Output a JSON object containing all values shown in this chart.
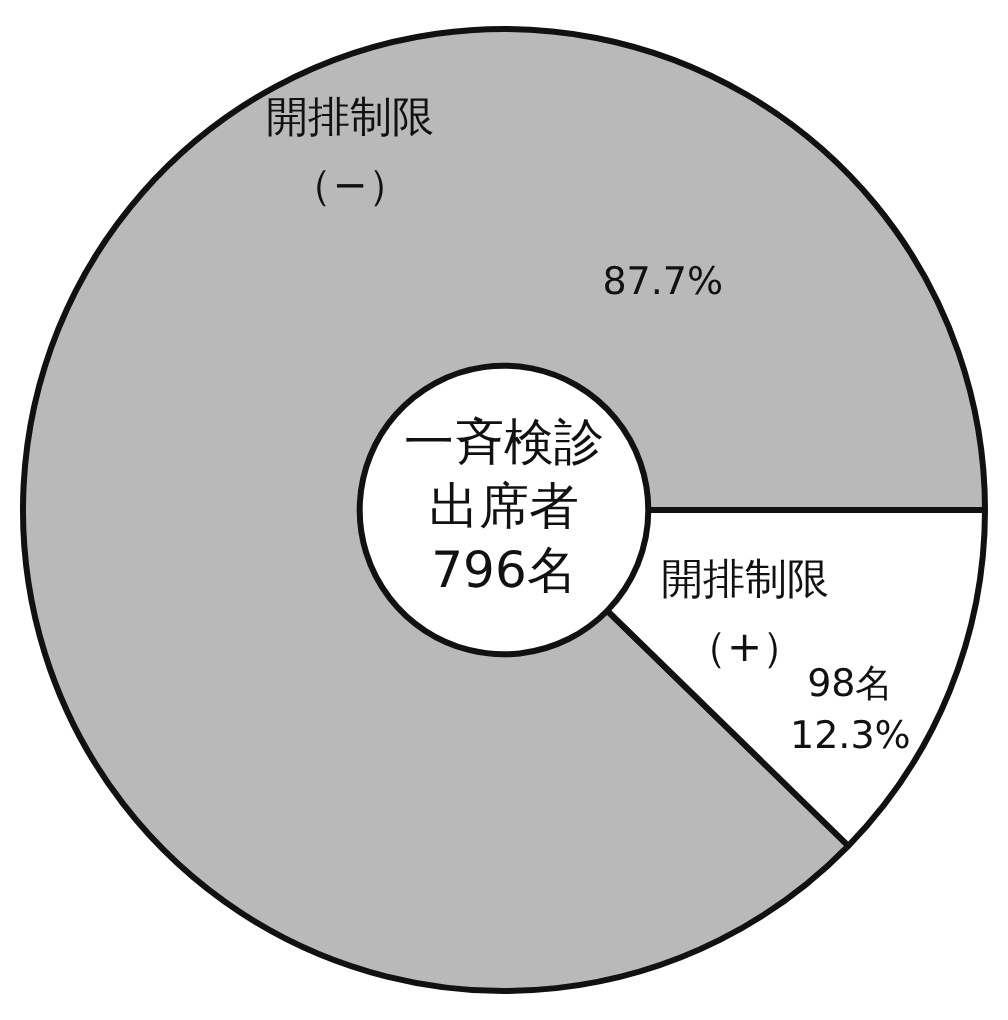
{
  "chart_data": {
    "type": "donut",
    "categories": [
      "開排制限（−）",
      "開排制限（+）"
    ],
    "values": [
      87.7,
      12.3
    ],
    "colors": [
      "#b9b9b9",
      "#ffffff"
    ],
    "value_labels": [
      "87.7%",
      "98名\n12.3%"
    ],
    "annotations": [
      "一斉検診",
      "出席者",
      "796名"
    ],
    "legend": false
  }
}
